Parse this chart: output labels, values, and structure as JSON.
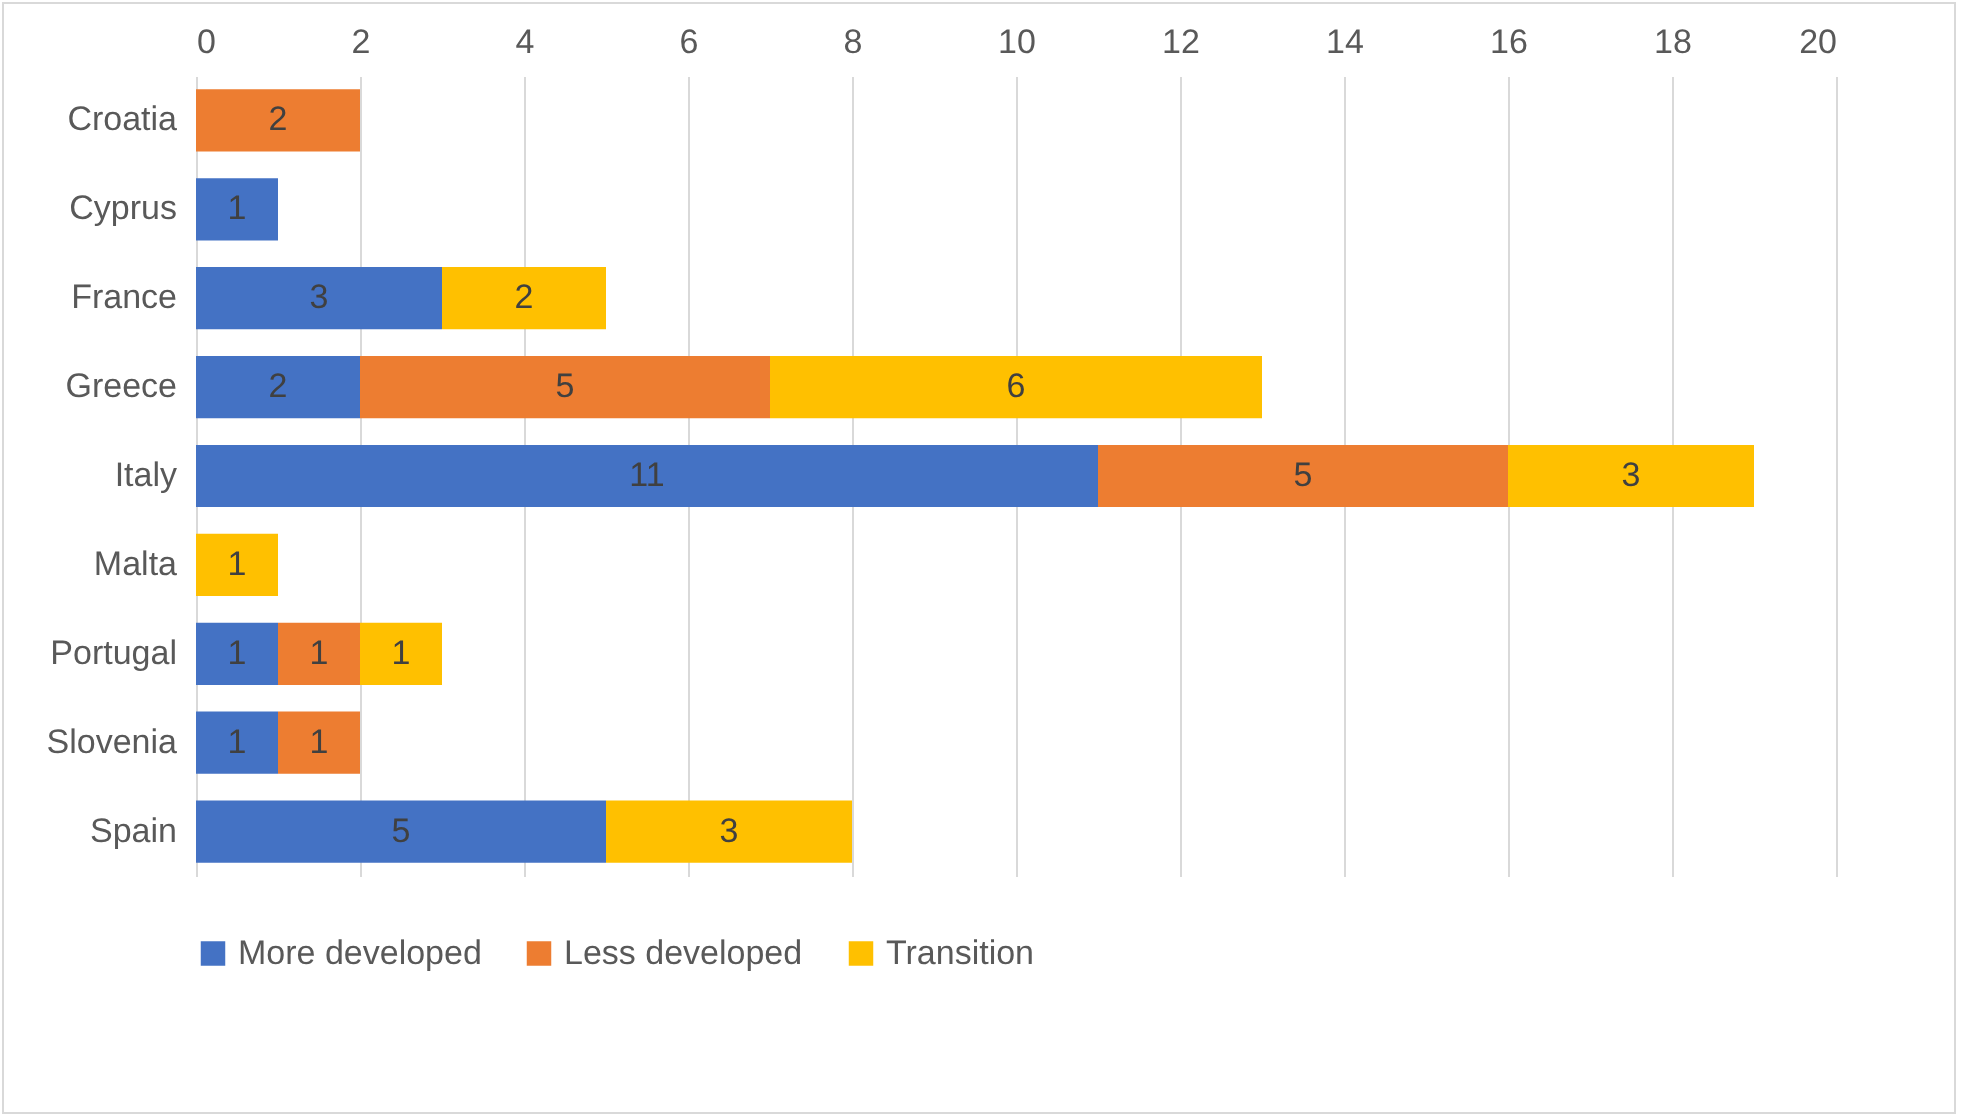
{
  "chart_data": {
    "type": "bar",
    "orientation": "horizontal",
    "stacked": true,
    "categories": [
      "Croatia",
      "Cyprus",
      "France",
      "Greece",
      "Italy",
      "Malta",
      "Portugal",
      "Slovenia",
      "Spain"
    ],
    "series": [
      {
        "name": "More developed",
        "color": "#4472c4",
        "values": [
          null,
          1,
          3,
          2,
          11,
          null,
          1,
          1,
          5
        ]
      },
      {
        "name": "Less developed",
        "color": "#ed7d31",
        "values": [
          2,
          null,
          null,
          5,
          5,
          null,
          1,
          1,
          null
        ]
      },
      {
        "name": "Transition",
        "color": "#ffc000",
        "values": [
          null,
          null,
          2,
          6,
          3,
          1,
          1,
          null,
          3
        ]
      }
    ],
    "xlim": [
      0,
      20
    ],
    "xticks": [
      0,
      2,
      4,
      6,
      8,
      10,
      12,
      14,
      16,
      18,
      20
    ],
    "grid": "x",
    "legend": "bottom",
    "data_labels": true
  }
}
